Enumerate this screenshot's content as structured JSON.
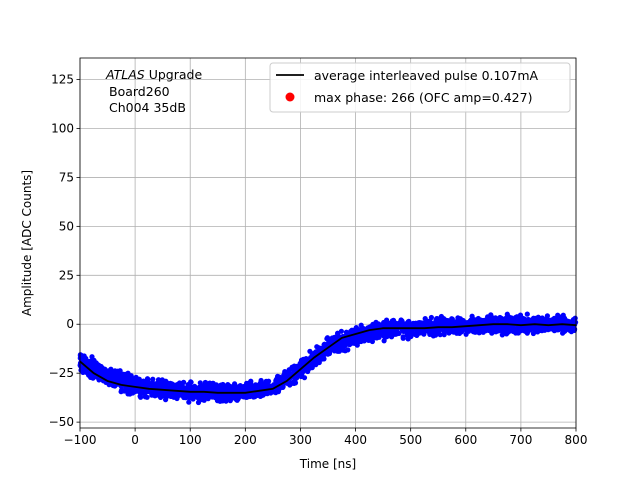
{
  "chart_data": {
    "type": "scatter",
    "xlabel": "Time [ns]",
    "ylabel": "Amplitude [ADC Counts]",
    "xlim": [
      -100,
      800
    ],
    "ylim": [
      -53,
      136
    ],
    "xticks": [
      -100,
      0,
      100,
      200,
      300,
      400,
      500,
      600,
      700,
      800
    ],
    "xtick_labels": [
      "−100",
      "0",
      "100",
      "200",
      "300",
      "400",
      "500",
      "600",
      "700",
      "800"
    ],
    "yticks": [
      -50,
      -25,
      0,
      25,
      50,
      75,
      100,
      125
    ],
    "ytick_labels": [
      "−50",
      "−25",
      "0",
      "25",
      "50",
      "75",
      "100",
      "125"
    ],
    "grid": true,
    "legend_position": "top-right",
    "annotation": {
      "line1_italic": "ATLAS",
      "line1_rest": " Upgrade",
      "line2": "Board260",
      "line3": "Ch004 35dB"
    },
    "series": [
      {
        "name": "average interleaved pulse 0.107mA",
        "kind": "line",
        "color": "#000000",
        "x": [
          -100,
          -75,
          -50,
          -25,
          0,
          25,
          50,
          75,
          100,
          125,
          150,
          175,
          200,
          225,
          250,
          275,
          300,
          325,
          350,
          375,
          400,
          425,
          450,
          475,
          500,
          525,
          550,
          575,
          600,
          625,
          650,
          675,
          700,
          725,
          750,
          775,
          800
        ],
        "y": [
          -19,
          -25,
          -29,
          -31,
          -32,
          -33,
          -33.5,
          -34,
          -34.5,
          -34.5,
          -35,
          -35,
          -35,
          -34,
          -33,
          -29,
          -23,
          -17,
          -12,
          -7,
          -5,
          -3,
          -2,
          -2,
          -2,
          -2,
          -1.5,
          -1.5,
          -1,
          -0.5,
          0,
          0,
          -0.5,
          0,
          -0.5,
          0,
          -0.5
        ]
      },
      {
        "name": "max phase: 266 (OFC amp=0.427)",
        "kind": "marker",
        "color": "#ff0000"
      },
      {
        "name": "samples",
        "kind": "scatter",
        "color": "#0000ff",
        "band_x": [
          -100,
          -50,
          0,
          50,
          100,
          150,
          200,
          250,
          300,
          350,
          400,
          450,
          500,
          550,
          600,
          650,
          700,
          750,
          800
        ],
        "band_low": [
          -26,
          -34,
          -38,
          -40,
          -41,
          -41,
          -40,
          -38,
          -30,
          -18,
          -12,
          -9,
          -8,
          -7,
          -6,
          -6,
          -6,
          -6,
          -6
        ],
        "band_high": [
          -12,
          -20,
          -25,
          -27,
          -28,
          -29,
          -29,
          -27,
          -17,
          -6,
          0,
          3,
          4,
          5,
          5,
          6,
          6,
          6,
          5
        ]
      }
    ]
  }
}
